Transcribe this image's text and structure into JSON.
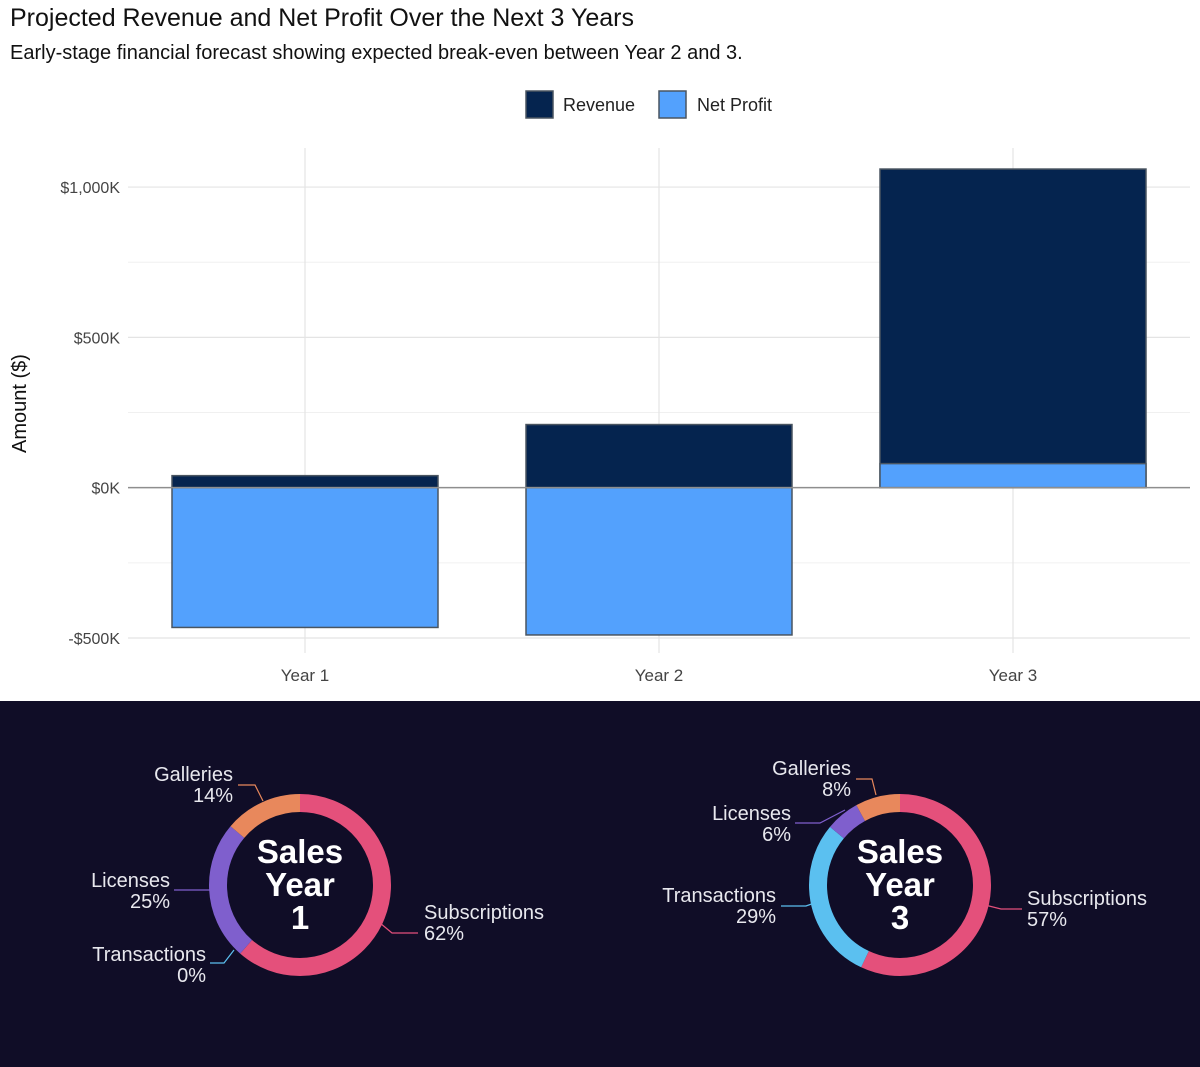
{
  "chart_data": [
    {
      "type": "bar",
      "title": "Projected Revenue and Net Profit Over the Next 3 Years",
      "subtitle": "Early-stage financial forecast showing expected break-even between Year 2 and 3.",
      "xlabel": "",
      "ylabel": "Amount ($)",
      "categories": [
        "Year 1",
        "Year 2",
        "Year 3"
      ],
      "series": [
        {
          "name": "Revenue",
          "color": "#05244f",
          "values": [
            40,
            210,
            1060
          ]
        },
        {
          "name": "Net Profit",
          "color": "#53a1fd",
          "values": [
            -465,
            -490,
            80
          ]
        }
      ],
      "ylim": [
        -550,
        1130
      ],
      "yticks": [
        -500,
        0,
        500,
        1000
      ],
      "ytick_labels": [
        "-$500K",
        "$0K",
        "$500K",
        "$1,000K"
      ],
      "grid": true,
      "legend": "top-center"
    },
    {
      "type": "pie",
      "variant": "donut",
      "center_label": [
        "Sales",
        "Year",
        "1"
      ],
      "slices": [
        {
          "label": "Subscriptions",
          "value": 62,
          "value_label": "62%",
          "color": "#e4507b"
        },
        {
          "label": "Transactions",
          "value": 0,
          "value_label": "0%",
          "color": "#5bc0f0"
        },
        {
          "label": "Licenses",
          "value": 25,
          "value_label": "25%",
          "color": "#7f5fcd"
        },
        {
          "label": "Galleries",
          "value": 14,
          "value_label": "14%",
          "color": "#e8885c"
        }
      ]
    },
    {
      "type": "pie",
      "variant": "donut",
      "center_label": [
        "Sales",
        "Year",
        "3"
      ],
      "slices": [
        {
          "label": "Subscriptions",
          "value": 57,
          "value_label": "57%",
          "color": "#e4507b"
        },
        {
          "label": "Transactions",
          "value": 29,
          "value_label": "29%",
          "color": "#5bc0f0"
        },
        {
          "label": "Licenses",
          "value": 6,
          "value_label": "6%",
          "color": "#7f5fcd"
        },
        {
          "label": "Galleries",
          "value": 8,
          "value_label": "8%",
          "color": "#e8885c"
        }
      ]
    }
  ]
}
